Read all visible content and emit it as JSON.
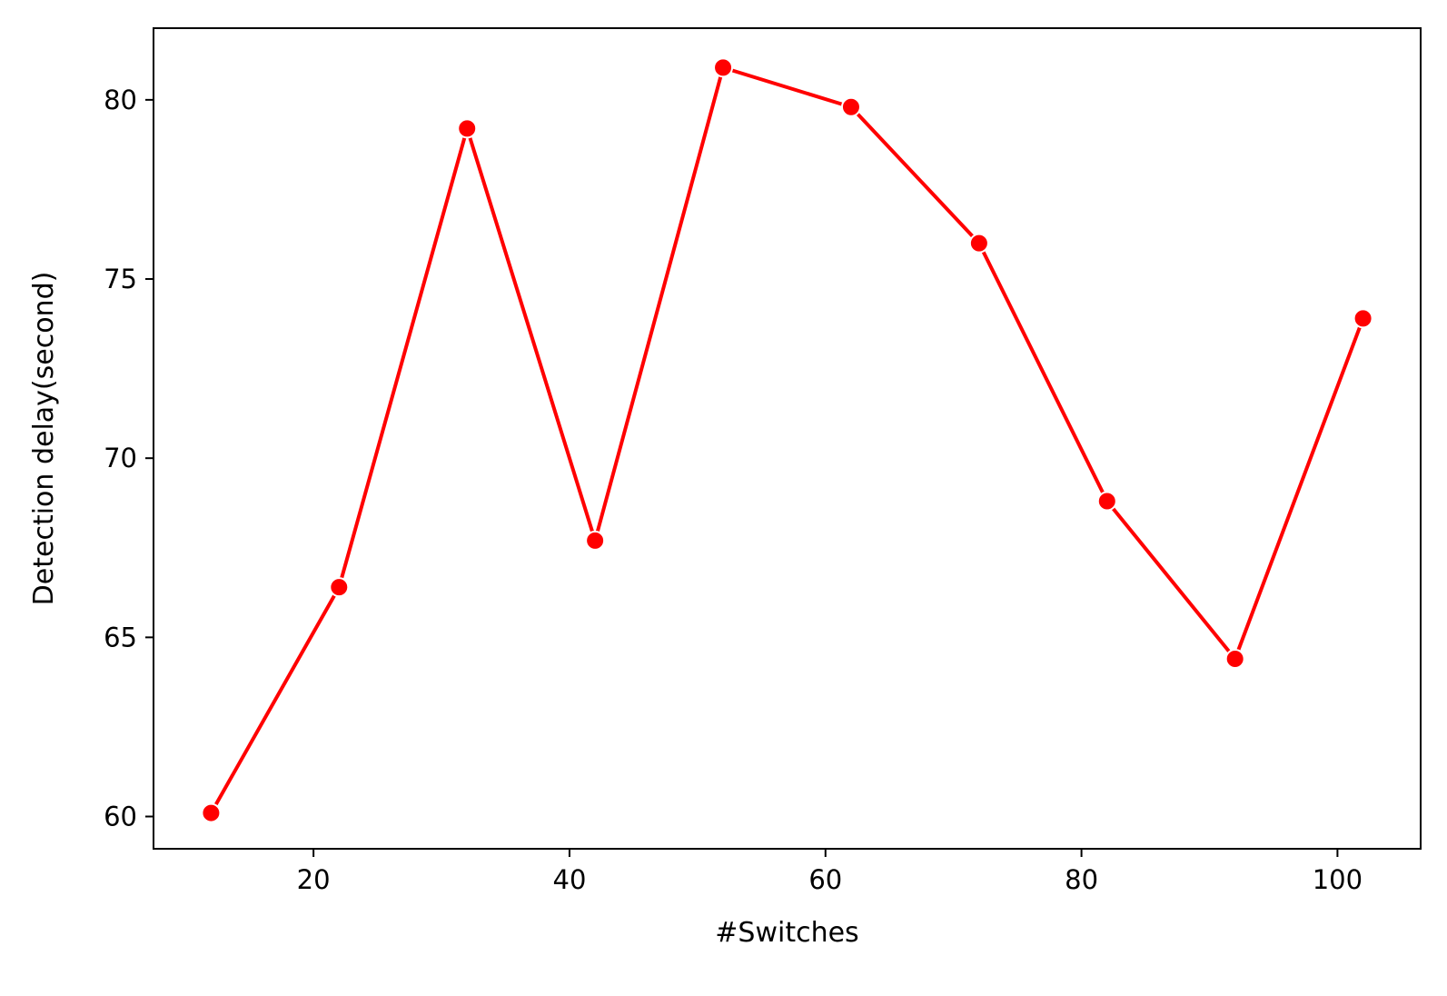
{
  "chart_data": {
    "type": "line",
    "title": "",
    "xlabel": "#Switches",
    "ylabel": "Detection delay(second)",
    "xlim": [
      7.5,
      106.5
    ],
    "ylim": [
      59.1,
      82.0
    ],
    "xticks": [
      20,
      40,
      60,
      80,
      100
    ],
    "yticks": [
      60,
      65,
      70,
      75,
      80
    ],
    "grid": false,
    "legend": "none",
    "series": [
      {
        "color": "#ff0000",
        "marker": "circle",
        "points": [
          {
            "x": 12,
            "y": 60.1
          },
          {
            "x": 22,
            "y": 66.4
          },
          {
            "x": 32,
            "y": 79.2
          },
          {
            "x": 42,
            "y": 67.7
          },
          {
            "x": 52,
            "y": 80.9
          },
          {
            "x": 62,
            "y": 79.8
          },
          {
            "x": 72,
            "y": 76.0
          },
          {
            "x": 82,
            "y": 68.8
          },
          {
            "x": 92,
            "y": 64.4
          },
          {
            "x": 102,
            "y": 73.9
          }
        ]
      }
    ]
  }
}
